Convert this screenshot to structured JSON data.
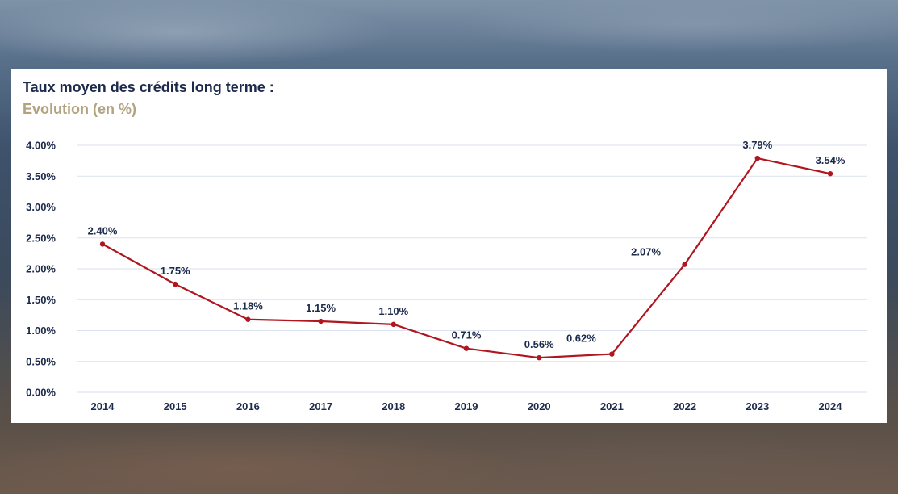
{
  "chart_data": {
    "type": "line",
    "title": "Taux moyen des crédits long terme :",
    "subtitle": "Evolution (en %)",
    "xlabel": "",
    "ylabel": "",
    "categories": [
      "2014",
      "2015",
      "2016",
      "2017",
      "2018",
      "2019",
      "2020",
      "2021",
      "2022",
      "2023",
      "2024"
    ],
    "series": [
      {
        "values": [
          2.4,
          1.75,
          1.18,
          1.15,
          1.1,
          0.71,
          0.56,
          0.62,
          2.07,
          3.79,
          3.54
        ],
        "data_labels": [
          "2.40%",
          "1.75%",
          "1.18%",
          "1.15%",
          "1.10%",
          "0.71%",
          "0.56%",
          "0.62%",
          "2.07%",
          "3.79%",
          "3.54%"
        ],
        "color": "#b0161f"
      }
    ],
    "ylim": [
      0,
      4
    ],
    "y_ticks": [
      0,
      0.5,
      1,
      1.5,
      2,
      2.5,
      3,
      3.5,
      4
    ],
    "y_tick_labels": [
      "0.00%",
      "0.50%",
      "1.00%",
      "1.50%",
      "2.00%",
      "2.50%",
      "3.00%",
      "3.50%",
      "4.00%"
    ],
    "grid": true,
    "legend": "none"
  },
  "colors": {
    "title": "#1c2a4c",
    "subtitle": "#b2a27f",
    "line": "#b0161f",
    "grid": "#d9e2ee",
    "card": "#ffffff"
  }
}
